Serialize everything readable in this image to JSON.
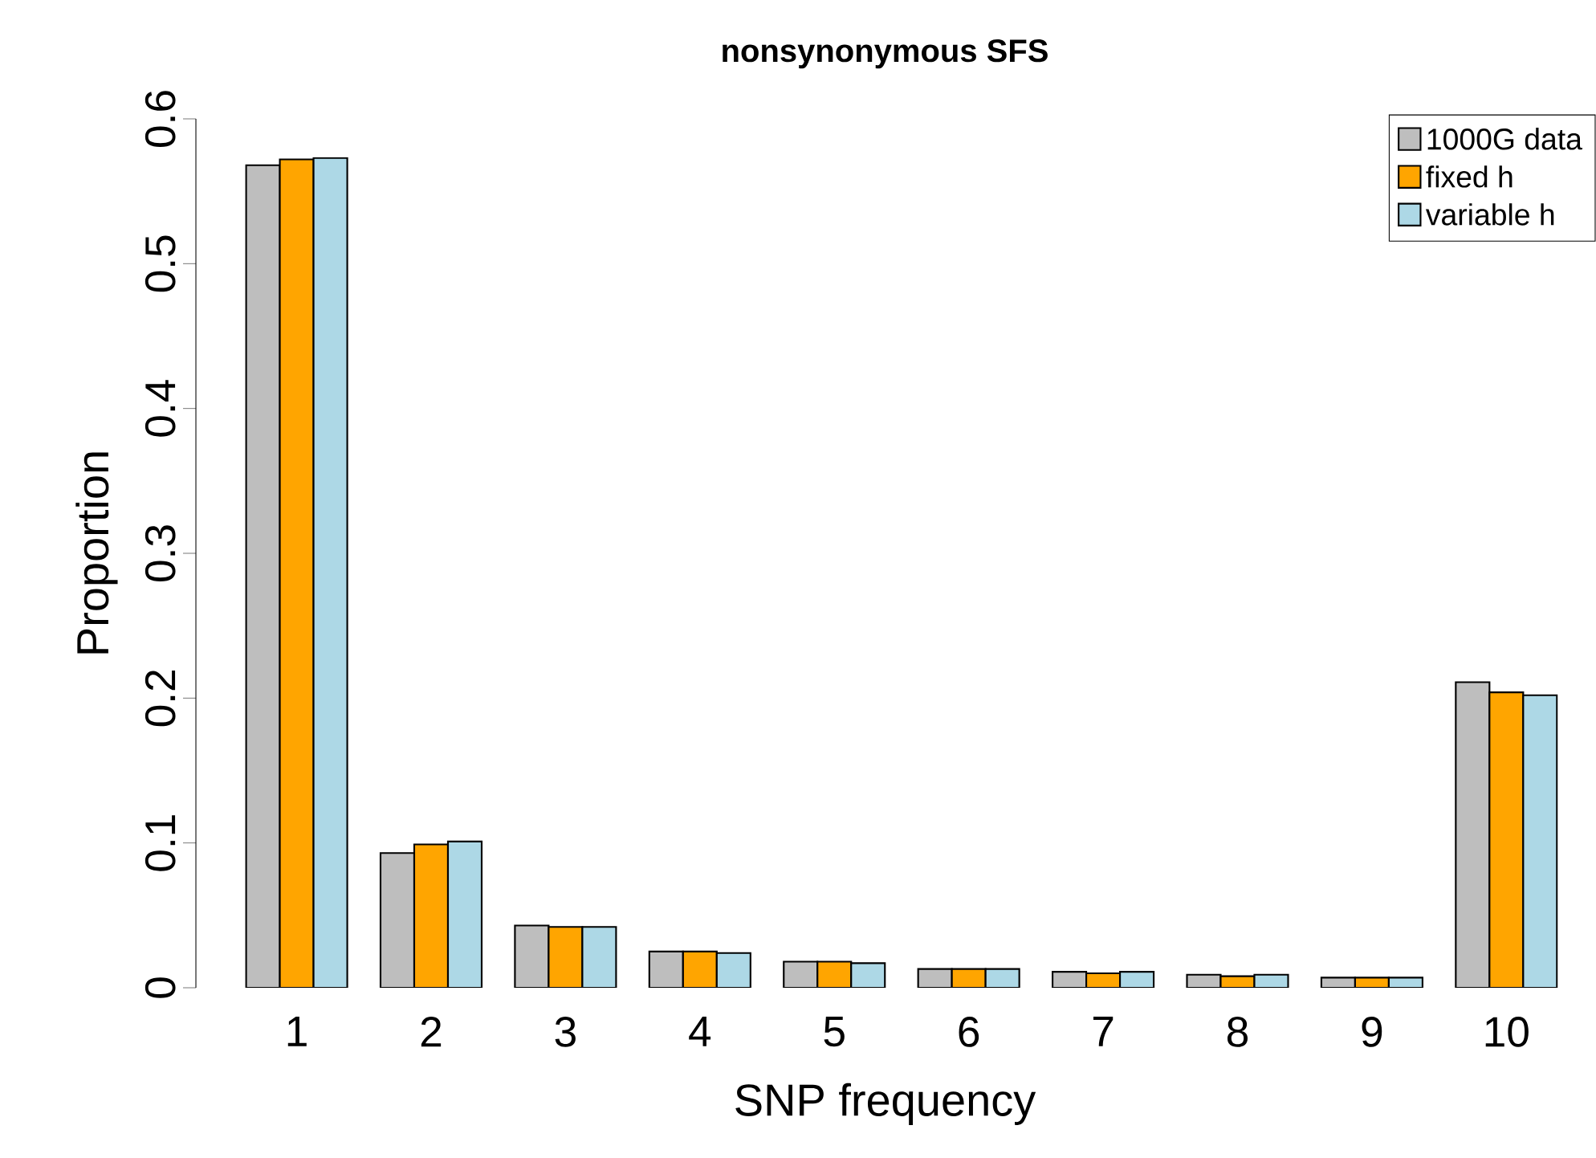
{
  "chart_data": {
    "type": "bar",
    "title": "nonsynonymous SFS",
    "xlabel": "SNP frequency",
    "ylabel": "Proportion",
    "categories": [
      "1",
      "2",
      "3",
      "4",
      "5",
      "6",
      "7",
      "8",
      "9",
      "10"
    ],
    "series": [
      {
        "name": "1000G data",
        "color": "#bebebe",
        "values": [
          0.568,
          0.093,
          0.043,
          0.025,
          0.018,
          0.013,
          0.011,
          0.009,
          0.007,
          0.211
        ]
      },
      {
        "name": "fixed h",
        "color": "#ffa500",
        "values": [
          0.572,
          0.099,
          0.042,
          0.025,
          0.018,
          0.013,
          0.01,
          0.008,
          0.007,
          0.204
        ]
      },
      {
        "name": "variable h",
        "color": "#add8e6",
        "values": [
          0.573,
          0.101,
          0.042,
          0.024,
          0.017,
          0.013,
          0.011,
          0.009,
          0.007,
          0.202
        ]
      }
    ],
    "ylim": [
      0,
      0.6
    ],
    "yticks": [
      0,
      0.1,
      0.2,
      0.3,
      0.4,
      0.5,
      0.6
    ],
    "legend": "top right"
  }
}
